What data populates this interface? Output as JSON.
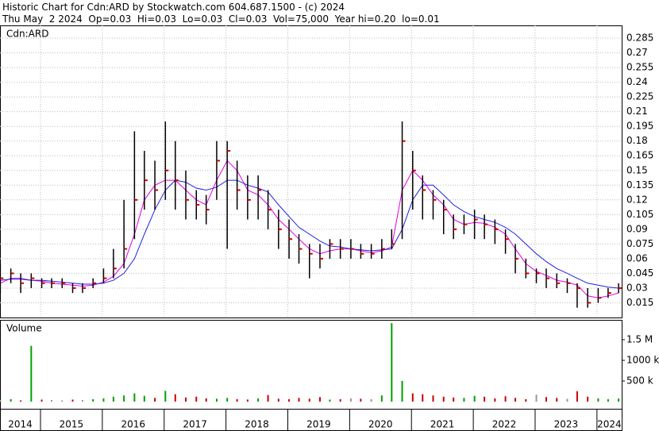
{
  "chart_data": [
    {
      "type": "hlc",
      "title": "Historic Chart for Cdn:ARD by Stockwatch.com 604.687.1500 - (c) 2024",
      "subtitle": "Thu May  2 2024  Op=0.03  Hi=0.03  Lo=0.03  Cl=0.03  Vol=75,000  Year hi=0.20  lo=0.01",
      "label": "Cdn:ARD",
      "x": [
        2014.35,
        2014.52,
        2014.68,
        2014.85,
        2015.02,
        2015.18,
        2015.35,
        2015.52,
        2015.68,
        2015.85,
        2016.02,
        2016.18,
        2016.35,
        2016.52,
        2016.68,
        2016.85,
        2017.02,
        2017.18,
        2017.35,
        2017.52,
        2017.68,
        2017.85,
        2018.02,
        2018.18,
        2018.35,
        2018.52,
        2018.68,
        2018.85,
        2019.02,
        2019.18,
        2019.35,
        2019.52,
        2019.68,
        2019.85,
        2020.02,
        2020.18,
        2020.35,
        2020.52,
        2020.68,
        2020.85,
        2021.02,
        2021.18,
        2021.35,
        2021.52,
        2021.68,
        2021.85,
        2022.02,
        2022.18,
        2022.35,
        2022.52,
        2022.68,
        2022.85,
        2023.02,
        2023.18,
        2023.35,
        2023.52,
        2023.68,
        2023.85,
        2024.02,
        2024.18,
        2024.35
      ],
      "high": [
        0.055,
        0.05,
        0.045,
        0.045,
        0.04,
        0.04,
        0.04,
        0.035,
        0.035,
        0.04,
        0.05,
        0.07,
        0.12,
        0.19,
        0.17,
        0.16,
        0.2,
        0.18,
        0.15,
        0.13,
        0.125,
        0.18,
        0.18,
        0.16,
        0.145,
        0.145,
        0.13,
        0.11,
        0.1,
        0.085,
        0.075,
        0.075,
        0.08,
        0.08,
        0.08,
        0.075,
        0.075,
        0.08,
        0.09,
        0.2,
        0.17,
        0.145,
        0.13,
        0.12,
        0.105,
        0.105,
        0.11,
        0.105,
        0.1,
        0.09,
        0.075,
        0.06,
        0.05,
        0.05,
        0.045,
        0.04,
        0.035,
        0.03,
        0.03,
        0.03,
        0.035
      ],
      "low": [
        0.025,
        0.035,
        0.025,
        0.03,
        0.03,
        0.03,
        0.03,
        0.025,
        0.025,
        0.03,
        0.035,
        0.04,
        0.05,
        0.08,
        0.11,
        0.11,
        0.12,
        0.11,
        0.1,
        0.1,
        0.095,
        0.12,
        0.07,
        0.11,
        0.1,
        0.1,
        0.09,
        0.07,
        0.06,
        0.055,
        0.04,
        0.05,
        0.06,
        0.06,
        0.06,
        0.06,
        0.06,
        0.06,
        0.07,
        0.08,
        0.11,
        0.1,
        0.1,
        0.085,
        0.08,
        0.085,
        0.08,
        0.08,
        0.075,
        0.065,
        0.045,
        0.04,
        0.035,
        0.03,
        0.03,
        0.025,
        0.01,
        0.01,
        0.015,
        0.02,
        0.025
      ],
      "close": [
        0.04,
        0.045,
        0.035,
        0.04,
        0.035,
        0.035,
        0.035,
        0.03,
        0.03,
        0.035,
        0.04,
        0.05,
        0.07,
        0.12,
        0.14,
        0.13,
        0.15,
        0.14,
        0.12,
        0.115,
        0.11,
        0.16,
        0.17,
        0.13,
        0.12,
        0.13,
        0.11,
        0.09,
        0.08,
        0.07,
        0.065,
        0.06,
        0.075,
        0.07,
        0.07,
        0.065,
        0.065,
        0.07,
        0.075,
        0.18,
        0.15,
        0.13,
        0.12,
        0.11,
        0.09,
        0.095,
        0.1,
        0.095,
        0.09,
        0.08,
        0.06,
        0.045,
        0.045,
        0.04,
        0.035,
        0.035,
        0.03,
        0.015,
        0.02,
        0.025,
        0.03
      ],
      "bar_color": "#000000",
      "close_color": "#cc0000",
      "series": [
        {
          "color": "#e000e0",
          "values": [
            0.035,
            0.04,
            0.04,
            0.038,
            0.037,
            0.035,
            0.034,
            0.033,
            0.032,
            0.033,
            0.036,
            0.042,
            0.055,
            0.085,
            0.12,
            0.135,
            0.14,
            0.14,
            0.13,
            0.12,
            0.115,
            0.14,
            0.16,
            0.15,
            0.13,
            0.125,
            0.115,
            0.1,
            0.09,
            0.08,
            0.07,
            0.065,
            0.068,
            0.07,
            0.07,
            0.068,
            0.066,
            0.068,
            0.072,
            0.13,
            0.15,
            0.14,
            0.125,
            0.115,
            0.1,
            0.095,
            0.097,
            0.096,
            0.092,
            0.085,
            0.07,
            0.055,
            0.047,
            0.043,
            0.038,
            0.036,
            0.033,
            0.022,
            0.02,
            0.022,
            0.025
          ]
        },
        {
          "color": "#2020e0",
          "values": [
            0.038,
            0.039,
            0.039,
            0.038,
            0.038,
            0.037,
            0.036,
            0.035,
            0.034,
            0.034,
            0.035,
            0.038,
            0.045,
            0.06,
            0.085,
            0.11,
            0.13,
            0.14,
            0.138,
            0.132,
            0.13,
            0.133,
            0.14,
            0.14,
            0.135,
            0.132,
            0.128,
            0.115,
            0.103,
            0.092,
            0.085,
            0.078,
            0.073,
            0.072,
            0.07,
            0.069,
            0.068,
            0.069,
            0.07,
            0.09,
            0.12,
            0.135,
            0.135,
            0.125,
            0.115,
            0.108,
            0.103,
            0.1,
            0.097,
            0.092,
            0.085,
            0.075,
            0.065,
            0.057,
            0.05,
            0.045,
            0.04,
            0.035,
            0.033,
            0.031,
            0.03
          ]
        }
      ],
      "xlim": [
        2014.345,
        2024.4
      ],
      "xticks": [
        2015,
        2016,
        2017,
        2018,
        2019,
        2020,
        2021,
        2022,
        2023,
        2024
      ],
      "ylim": [
        0,
        0.298
      ],
      "yticks": [
        0.015,
        0.03,
        0.045,
        0.06,
        0.075,
        0.09,
        0.105,
        0.12,
        0.135,
        0.15,
        0.165,
        0.18,
        0.195,
        0.21,
        0.225,
        0.24,
        0.255,
        0.27,
        0.285
      ],
      "grid": true
    },
    {
      "type": "volume",
      "title": "Volume",
      "x": [
        2014.35,
        2014.52,
        2014.68,
        2014.85,
        2015.02,
        2015.18,
        2015.35,
        2015.52,
        2015.68,
        2015.85,
        2016.02,
        2016.18,
        2016.35,
        2016.52,
        2016.68,
        2016.85,
        2017.02,
        2017.18,
        2017.35,
        2017.52,
        2017.68,
        2017.85,
        2018.02,
        2018.18,
        2018.35,
        2018.52,
        2018.68,
        2018.85,
        2019.02,
        2019.18,
        2019.35,
        2019.52,
        2019.68,
        2019.85,
        2020.02,
        2020.18,
        2020.35,
        2020.52,
        2020.68,
        2020.85,
        2021.02,
        2021.18,
        2021.35,
        2021.52,
        2021.68,
        2021.85,
        2022.02,
        2022.18,
        2022.35,
        2022.52,
        2022.68,
        2022.85,
        2023.02,
        2023.18,
        2023.35,
        2023.52,
        2023.68,
        2023.85,
        2024.02,
        2024.18,
        2024.35
      ],
      "values": [
        40000,
        60000,
        30000,
        1350000,
        50000,
        40000,
        30000,
        50000,
        40000,
        60000,
        80000,
        120000,
        150000,
        200000,
        140000,
        90000,
        260000,
        180000,
        100000,
        120000,
        80000,
        70000,
        90000,
        60000,
        50000,
        80000,
        160000,
        70000,
        60000,
        90000,
        70000,
        110000,
        50000,
        60000,
        80000,
        70000,
        60000,
        150000,
        1900000,
        500000,
        200000,
        180000,
        150000,
        120000,
        100000,
        90000,
        140000,
        120000,
        80000,
        130000,
        90000,
        60000,
        170000,
        110000,
        90000,
        70000,
        250000,
        120000,
        80000,
        60000,
        75000
      ],
      "up_color": "#00a000",
      "down_color": "#cc0000",
      "neutral_color": "#999999",
      "xlim": [
        2014.345,
        2024.4
      ],
      "xticks": [
        2015,
        2016,
        2017,
        2018,
        2019,
        2020,
        2021,
        2022,
        2023,
        2024
      ],
      "year_labels": [
        "2014",
        "2015",
        "2016",
        "2017",
        "2018",
        "2019",
        "2020",
        "2021",
        "2022",
        "2023",
        "2024"
      ],
      "ylim": [
        -173000,
        1980000
      ],
      "yticks": [
        {
          "value": 1500000,
          "label": "1.5 M"
        },
        {
          "value": 1000000,
          "label": "1000 k"
        },
        {
          "value": 500000,
          "label": "500 k"
        }
      ]
    }
  ]
}
